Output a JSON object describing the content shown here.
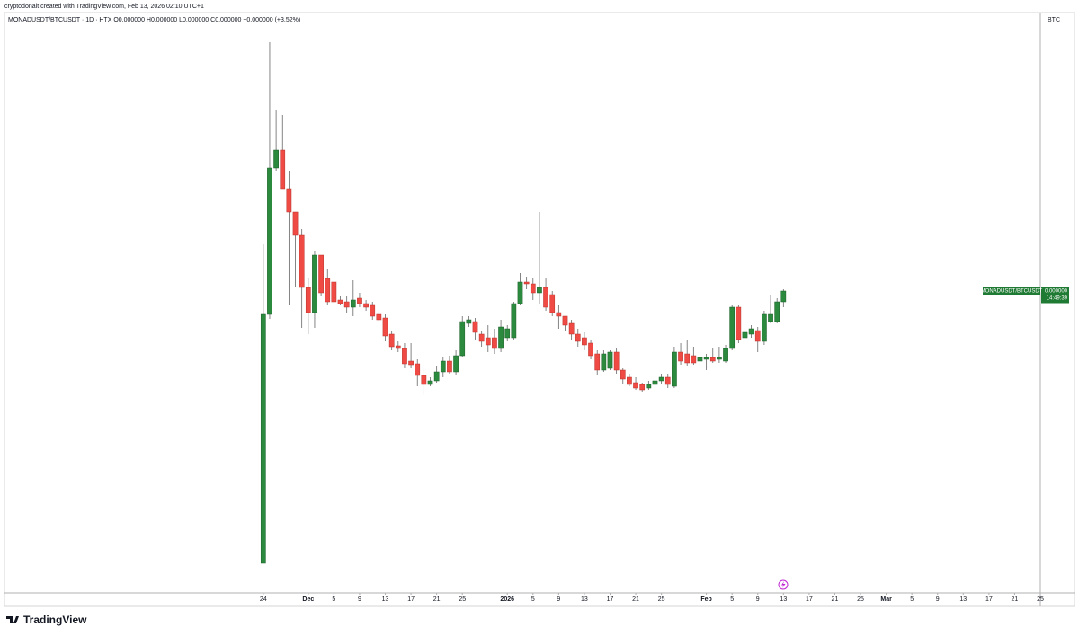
{
  "header": {
    "credit": "cryptodonalt created with TradingView.com, Feb 13, 2026 02:10 UTC+1",
    "legend": "MONADUSDT/BTCUSDT · 1D · HTX  O0.000000  H0.000000  L0.000000  C0.000000  +0.000000 (+3.52%)"
  },
  "axis_unit": "BTC",
  "price_label": {
    "symbol": "MONADUSDT/BTCUSDT",
    "price": "0.000000",
    "countdown": "14:49:39"
  },
  "logo": "TradingView",
  "chart_data": {
    "type": "candlestick",
    "up_color": "#2b8a3e",
    "down_color": "#ef4a43",
    "wick_color": "#666666",
    "xlim": [
      -40.3,
      121
    ],
    "ylim": [
      0,
      645
    ],
    "xticks": [
      {
        "value": 0,
        "label": "24"
      },
      {
        "value": 7,
        "label": "Dec"
      },
      {
        "value": 11,
        "label": "5"
      },
      {
        "value": 15,
        "label": "9"
      },
      {
        "value": 19,
        "label": "13"
      },
      {
        "value": 23,
        "label": "17"
      },
      {
        "value": 27,
        "label": "21"
      },
      {
        "value": 31,
        "label": "25"
      },
      {
        "value": 38,
        "label": "2026"
      },
      {
        "value": 42,
        "label": "5"
      },
      {
        "value": 46,
        "label": "9"
      },
      {
        "value": 50,
        "label": "13"
      },
      {
        "value": 54,
        "label": "17"
      },
      {
        "value": 58,
        "label": "21"
      },
      {
        "value": 62,
        "label": "25"
      },
      {
        "value": 69,
        "label": "Feb"
      },
      {
        "value": 73,
        "label": "5"
      },
      {
        "value": 77,
        "label": "9"
      },
      {
        "value": 81,
        "label": "13"
      },
      {
        "value": 85,
        "label": "17"
      },
      {
        "value": 89,
        "label": "21"
      },
      {
        "value": 93,
        "label": "25"
      },
      {
        "value": 97,
        "label": "Mar"
      },
      {
        "value": 101,
        "label": "5"
      },
      {
        "value": 105,
        "label": "9"
      },
      {
        "value": 109,
        "label": "13"
      },
      {
        "value": 113,
        "label": "17"
      },
      {
        "value": 117,
        "label": "21"
      },
      {
        "value": 121,
        "label": "25"
      }
    ],
    "open": [
      33,
      310,
      473,
      493,
      450,
      424,
      398,
      340,
      312,
      376,
      350,
      346,
      326,
      324,
      318,
      328,
      322,
      320,
      310,
      306,
      288,
      275,
      272,
      258,
      255,
      242,
      232,
      236,
      246,
      258,
      246,
      264,
      300,
      302,
      288,
      284,
      284,
      272,
      284,
      284,
      322,
      346,
      344,
      334,
      340,
      332,
      312,
      308,
      300,
      288,
      284,
      278,
      266,
      248,
      250,
      268,
      248,
      240,
      234,
      232,
      228,
      232,
      236,
      240,
      230,
      268,
      266,
      264,
      258,
      260,
      262,
      260,
      258,
      272,
      318,
      284,
      288,
      292,
      280,
      302,
      302,
      324
    ],
    "high": [
      388,
      613,
      537,
      532,
      470,
      424,
      405,
      350,
      380,
      376,
      360,
      346,
      330,
      330,
      348,
      334,
      326,
      324,
      315,
      310,
      292,
      280,
      278,
      278,
      260,
      250,
      240,
      252,
      262,
      264,
      270,
      308,
      308,
      306,
      292,
      298,
      294,
      304,
      298,
      324,
      356,
      352,
      350,
      424,
      350,
      336,
      320,
      308,
      304,
      294,
      290,
      282,
      270,
      270,
      270,
      272,
      250,
      244,
      240,
      234,
      236,
      240,
      244,
      244,
      274,
      278,
      282,
      274,
      280,
      266,
      272,
      274,
      276,
      320,
      320,
      296,
      298,
      296,
      314,
      332,
      328,
      338
    ],
    "low": [
      33,
      305,
      470,
      450,
      320,
      340,
      295,
      288,
      295,
      330,
      320,
      320,
      320,
      312,
      308,
      318,
      314,
      304,
      300,
      280,
      270,
      268,
      250,
      250,
      230,
      220,
      230,
      234,
      240,
      244,
      242,
      262,
      296,
      282,
      274,
      268,
      266,
      268,
      280,
      282,
      320,
      338,
      326,
      322,
      314,
      308,
      294,
      292,
      282,
      274,
      270,
      260,
      242,
      246,
      248,
      244,
      232,
      230,
      226,
      224,
      226,
      230,
      232,
      228,
      228,
      254,
      252,
      254,
      250,
      248,
      256,
      256,
      256,
      270,
      278,
      282,
      284,
      268,
      276,
      300,
      300,
      318
    ],
    "close": [
      310,
      473,
      493,
      450,
      424,
      398,
      340,
      312,
      376,
      334,
      324,
      324,
      322,
      318,
      326,
      322,
      318,
      308,
      304,
      286,
      274,
      272,
      255,
      254,
      242,
      232,
      236,
      246,
      258,
      246,
      264,
      302,
      304,
      290,
      280,
      276,
      272,
      296,
      294,
      322,
      346,
      344,
      334,
      340,
      318,
      312,
      308,
      298,
      288,
      280,
      276,
      264,
      248,
      266,
      268,
      248,
      238,
      232,
      228,
      226,
      232,
      236,
      240,
      232,
      268,
      258,
      256,
      256,
      262,
      262,
      258,
      262,
      272,
      318,
      282,
      290,
      294,
      280,
      310,
      310,
      324,
      336
    ]
  }
}
